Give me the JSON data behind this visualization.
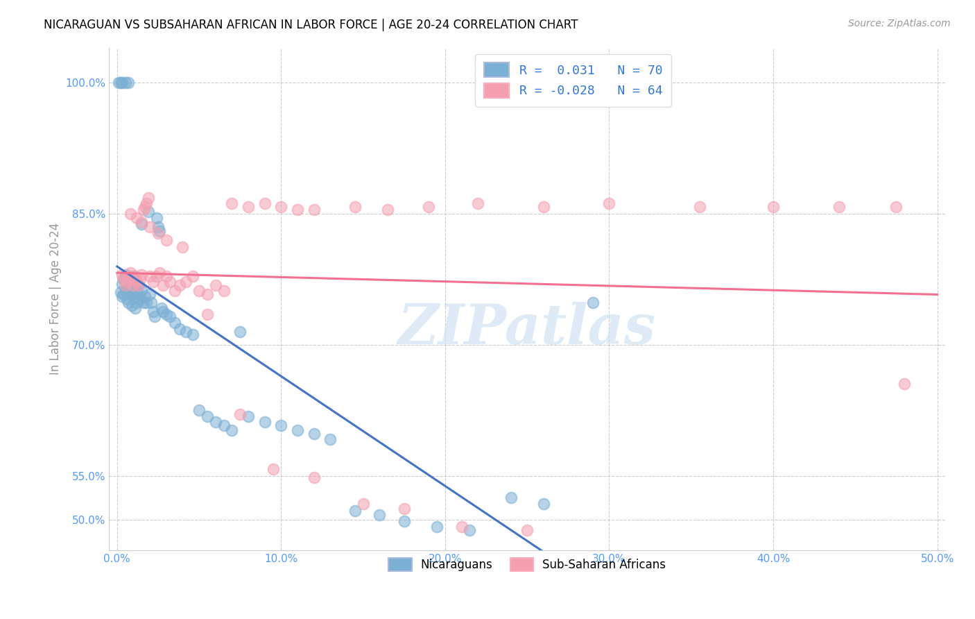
{
  "title": "NICARAGUAN VS SUBSAHARAN AFRICAN IN LABOR FORCE | AGE 20-24 CORRELATION CHART",
  "source": "Source: ZipAtlas.com",
  "ylabel": "In Labor Force | Age 20-24",
  "ytick_labels": [
    "50.0%",
    "55.0%",
    "70.0%",
    "85.0%",
    "100.0%"
  ],
  "ytick_values": [
    0.5,
    0.55,
    0.7,
    0.85,
    1.0
  ],
  "xtick_labels": [
    "0.0%",
    "10.0%",
    "20.0%",
    "30.0%",
    "40.0%",
    "50.0%"
  ],
  "xtick_values": [
    0.0,
    0.1,
    0.2,
    0.3,
    0.4,
    0.5
  ],
  "xlim": [
    -0.005,
    0.505
  ],
  "ylim": [
    0.465,
    1.04
  ],
  "blue_color": "#7bafd4",
  "pink_color": "#f4a0b0",
  "trendline_blue": "#4472c4",
  "trendline_pink": "#f47090",
  "watermark": "ZIPatlas",
  "watermark_color": "#c8dff0",
  "legend_line1": "R =  0.031   N = 70",
  "legend_line2": "R = -0.028   N = 64",
  "legend_text_color": "#3377dd",
  "axis_label_color": "#5599ff",
  "trendline_solid_end": 0.3,
  "nic_x": [
    0.002,
    0.003,
    0.003,
    0.004,
    0.004,
    0.005,
    0.005,
    0.006,
    0.006,
    0.007,
    0.007,
    0.008,
    0.008,
    0.009,
    0.009,
    0.01,
    0.01,
    0.011,
    0.011,
    0.012,
    0.012,
    0.013,
    0.013,
    0.014,
    0.015,
    0.015,
    0.016,
    0.017,
    0.018,
    0.019,
    0.02,
    0.021,
    0.022,
    0.023,
    0.024,
    0.025,
    0.026,
    0.027,
    0.028,
    0.03,
    0.032,
    0.035,
    0.038,
    0.042,
    0.046,
    0.05,
    0.055,
    0.06,
    0.065,
    0.07,
    0.075,
    0.08,
    0.09,
    0.1,
    0.11,
    0.12,
    0.13,
    0.145,
    0.16,
    0.175,
    0.195,
    0.215,
    0.24,
    0.26,
    0.29,
    0.001,
    0.002,
    0.003,
    0.005,
    0.007
  ],
  "nic_y": [
    0.76,
    0.755,
    0.77,
    0.758,
    0.775,
    0.762,
    0.78,
    0.752,
    0.768,
    0.748,
    0.765,
    0.758,
    0.772,
    0.762,
    0.745,
    0.76,
    0.778,
    0.755,
    0.742,
    0.762,
    0.748,
    0.758,
    0.768,
    0.752,
    0.838,
    0.762,
    0.748,
    0.755,
    0.748,
    0.852,
    0.758,
    0.748,
    0.738,
    0.732,
    0.845,
    0.835,
    0.83,
    0.742,
    0.738,
    0.735,
    0.732,
    0.725,
    0.718,
    0.715,
    0.712,
    0.625,
    0.618,
    0.612,
    0.608,
    0.602,
    0.715,
    0.618,
    0.612,
    0.608,
    0.602,
    0.598,
    0.592,
    0.51,
    0.505,
    0.498,
    0.492,
    0.488,
    0.525,
    0.518,
    0.748,
    1.0,
    1.0,
    1.0,
    1.0,
    1.0
  ],
  "ssa_x": [
    0.003,
    0.004,
    0.005,
    0.006,
    0.007,
    0.008,
    0.009,
    0.01,
    0.011,
    0.012,
    0.013,
    0.014,
    0.015,
    0.016,
    0.017,
    0.018,
    0.019,
    0.02,
    0.022,
    0.024,
    0.026,
    0.028,
    0.03,
    0.032,
    0.035,
    0.038,
    0.042,
    0.046,
    0.05,
    0.055,
    0.06,
    0.065,
    0.07,
    0.08,
    0.09,
    0.1,
    0.11,
    0.12,
    0.145,
    0.165,
    0.19,
    0.22,
    0.26,
    0.3,
    0.355,
    0.4,
    0.44,
    0.475,
    0.008,
    0.012,
    0.015,
    0.02,
    0.025,
    0.03,
    0.04,
    0.055,
    0.075,
    0.095,
    0.12,
    0.15,
    0.175,
    0.21,
    0.25,
    0.48
  ],
  "ssa_y": [
    0.78,
    0.775,
    0.768,
    0.772,
    0.778,
    0.782,
    0.775,
    0.768,
    0.778,
    0.772,
    0.768,
    0.775,
    0.78,
    0.855,
    0.858,
    0.862,
    0.868,
    0.778,
    0.772,
    0.778,
    0.782,
    0.768,
    0.778,
    0.772,
    0.762,
    0.768,
    0.772,
    0.778,
    0.762,
    0.758,
    0.768,
    0.762,
    0.862,
    0.858,
    0.862,
    0.858,
    0.855,
    0.855,
    0.858,
    0.855,
    0.858,
    0.862,
    0.858,
    0.862,
    0.858,
    0.858,
    0.858,
    0.858,
    0.85,
    0.845,
    0.84,
    0.835,
    0.828,
    0.82,
    0.812,
    0.735,
    0.62,
    0.558,
    0.548,
    0.518,
    0.512,
    0.492,
    0.488,
    0.655
  ]
}
